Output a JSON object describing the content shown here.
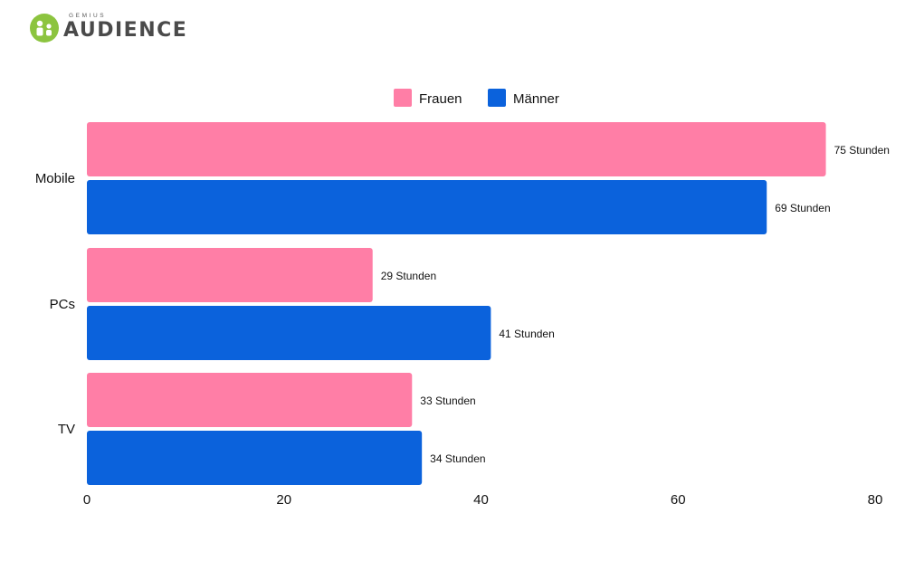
{
  "brand": {
    "small_text": "GEMIUS",
    "name": "AUDIENCE",
    "color": "#8cc43f"
  },
  "chart_data": {
    "type": "bar",
    "orientation": "horizontal",
    "categories": [
      "Mobile",
      "PCs",
      "TV"
    ],
    "series": [
      {
        "name": "Frauen",
        "color": "#ff7ea6",
        "values": [
          75,
          29,
          33
        ],
        "labels": [
          "75 Stunden",
          "29 Stunden",
          "33 Stunden"
        ]
      },
      {
        "name": "Männer",
        "color": "#0b62dc",
        "values": [
          69,
          41,
          34
        ],
        "labels": [
          "69 Stunden",
          "41 Stunden",
          "34 Stunden"
        ]
      }
    ],
    "xlim": [
      0,
      80
    ],
    "xticks": [
      0,
      20,
      40,
      60,
      80
    ],
    "legend_position": "top-center",
    "grid": false
  }
}
